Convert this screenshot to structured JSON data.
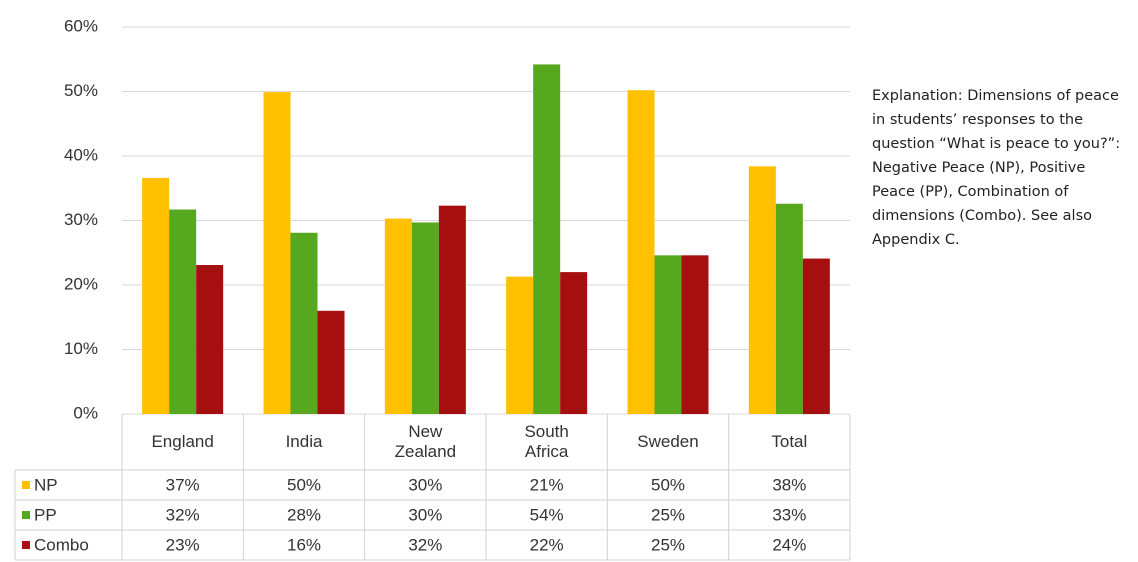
{
  "chart_data": {
    "type": "bar",
    "categories": [
      "England",
      "India",
      "New Zealand",
      "South Africa",
      "Sweden",
      "Total"
    ],
    "series": [
      {
        "name": "NP",
        "color": "#ffc000",
        "values": [
          36.6,
          49.9,
          30.3,
          21.3,
          50.2,
          38.4
        ],
        "value_labels": [
          "37%",
          "50%",
          "30%",
          "21%",
          "50%",
          "38%"
        ]
      },
      {
        "name": "PP",
        "color": "#56a81f",
        "values": [
          31.7,
          28.1,
          29.7,
          54.2,
          24.6,
          32.6
        ],
        "value_labels": [
          "32%",
          "28%",
          "30%",
          "54%",
          "25%",
          "33%"
        ]
      },
      {
        "name": "Combo",
        "color": "#a50f0f",
        "values": [
          23.1,
          16.0,
          32.3,
          22.0,
          24.6,
          24.1
        ],
        "value_labels": [
          "23%",
          "16%",
          "32%",
          "22%",
          "25%",
          "24%"
        ]
      }
    ],
    "ylim": [
      0,
      60
    ],
    "yticks": [
      {
        "value": 0,
        "label": "0%"
      },
      {
        "value": 10,
        "label": "10%"
      },
      {
        "value": 20,
        "label": "20%"
      },
      {
        "value": 30,
        "label": "30%"
      },
      {
        "value": 40,
        "label": "40%"
      },
      {
        "value": 50,
        "label": "50%"
      },
      {
        "value": 60,
        "label": "60%"
      }
    ],
    "grid": true,
    "annotation": "Explanation: Dimensions of peace in students’ responses to the question “What is peace to you?”: Negative Peace (NP), Positive Peace (PP), Combination of dimensions (Combo). See also Appendix C."
  }
}
